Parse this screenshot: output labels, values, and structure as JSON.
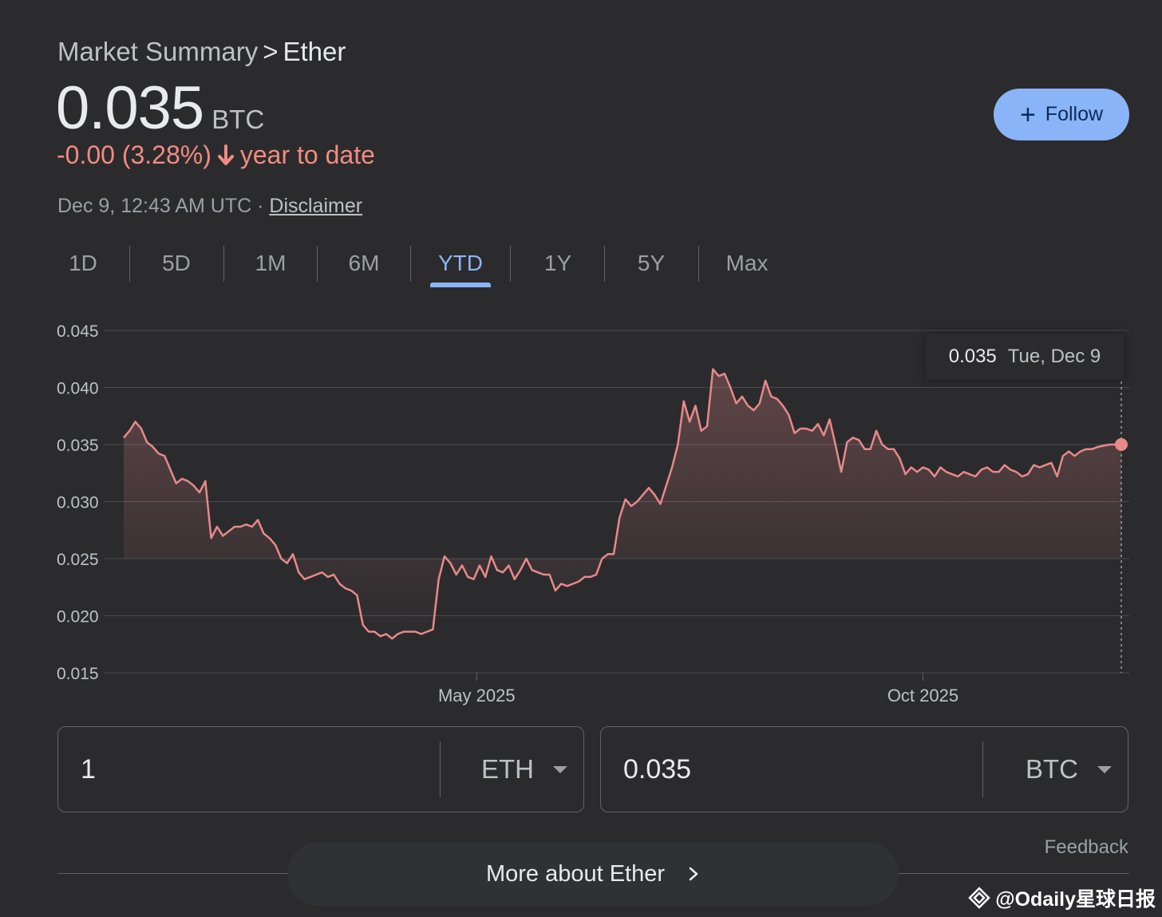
{
  "breadcrumb": {
    "parent": "Market Summary",
    "separator": ">",
    "current": "Ether"
  },
  "price": {
    "value": "0.035",
    "currency": "BTC"
  },
  "change": {
    "text": "-0.00 (3.28%)",
    "period": "year to date",
    "direction": "down"
  },
  "meta": {
    "timestamp": "Dec 9, 12:43 AM UTC",
    "separator": "·",
    "disclaimer": "Disclaimer"
  },
  "follow": {
    "label": "Follow"
  },
  "tabs": [
    {
      "label": "1D",
      "active": false
    },
    {
      "label": "5D",
      "active": false
    },
    {
      "label": "1M",
      "active": false
    },
    {
      "label": "6M",
      "active": false
    },
    {
      "label": "YTD",
      "active": true
    },
    {
      "label": "1Y",
      "active": false
    },
    {
      "label": "5Y",
      "active": false
    },
    {
      "label": "Max",
      "active": false
    }
  ],
  "tooltip": {
    "value": "0.035",
    "date": "Tue, Dec 9"
  },
  "chart_data": {
    "type": "line",
    "yticks": [
      "0.045",
      "0.040",
      "0.035",
      "0.030",
      "0.025",
      "0.020",
      "0.015"
    ],
    "ylim": [
      0.015,
      0.045
    ],
    "xticks": [
      {
        "label": "May 2025",
        "t": 121
      },
      {
        "label": "Oct 2025",
        "t": 274
      }
    ],
    "xlim": [
      0,
      342
    ],
    "grid": true,
    "line_color": "#e8898a",
    "series": [
      {
        "x": [
          0,
          2,
          4,
          6,
          8,
          10,
          12,
          14,
          16,
          18,
          20,
          22,
          24,
          26,
          28,
          30,
          32,
          34,
          36,
          38,
          40,
          42,
          44,
          46,
          48,
          50,
          52,
          54,
          56,
          58,
          60,
          62,
          64,
          66,
          68,
          70,
          72,
          74,
          76,
          78,
          80,
          82,
          84,
          86,
          88,
          90,
          92,
          94,
          96,
          98,
          100,
          102,
          104,
          106,
          108,
          110,
          112,
          114,
          116,
          118,
          120,
          122,
          124,
          126,
          128,
          130,
          132,
          134,
          136,
          138,
          140,
          142,
          144,
          146,
          148,
          150,
          152,
          154,
          156,
          158,
          160,
          162,
          164,
          166,
          168,
          170,
          172,
          174,
          176,
          178,
          180,
          182,
          184,
          186,
          188,
          190,
          192,
          194,
          196,
          198,
          200,
          202,
          204,
          206,
          208,
          210,
          212,
          214,
          216,
          218,
          220,
          222,
          224,
          226,
          228,
          230,
          232,
          234,
          236,
          238,
          240,
          242,
          244,
          246,
          248,
          250,
          252,
          254,
          256,
          258,
          260,
          262,
          264,
          266,
          268,
          270,
          272,
          274,
          276,
          278,
          280,
          282,
          284,
          286,
          288,
          290,
          292,
          294,
          296,
          298,
          300,
          302,
          304,
          306,
          308,
          310,
          312,
          314,
          316,
          318,
          320,
          322,
          324,
          326,
          328,
          330,
          332,
          334,
          336,
          338,
          340,
          342
        ],
        "y": [
          0.0356,
          0.0362,
          0.037,
          0.0364,
          0.0352,
          0.0348,
          0.0342,
          0.034,
          0.0328,
          0.0316,
          0.032,
          0.0318,
          0.0314,
          0.0308,
          0.0318,
          0.0268,
          0.0278,
          0.027,
          0.0274,
          0.0278,
          0.0278,
          0.028,
          0.0278,
          0.0284,
          0.0272,
          0.0268,
          0.0262,
          0.025,
          0.0246,
          0.0254,
          0.0238,
          0.0232,
          0.0234,
          0.0236,
          0.0238,
          0.0234,
          0.0236,
          0.0228,
          0.0224,
          0.0222,
          0.0218,
          0.0192,
          0.0186,
          0.0186,
          0.0182,
          0.0184,
          0.018,
          0.0184,
          0.0186,
          0.0186,
          0.0186,
          0.0184,
          0.0186,
          0.0188,
          0.0232,
          0.0252,
          0.0246,
          0.0236,
          0.0244,
          0.0234,
          0.0232,
          0.0244,
          0.0234,
          0.0252,
          0.024,
          0.0238,
          0.0244,
          0.0232,
          0.024,
          0.025,
          0.024,
          0.0238,
          0.0236,
          0.0236,
          0.0222,
          0.0228,
          0.0226,
          0.0228,
          0.023,
          0.0234,
          0.0234,
          0.0236,
          0.025,
          0.0254,
          0.0254,
          0.0286,
          0.0302,
          0.0296,
          0.03,
          0.0306,
          0.0312,
          0.0306,
          0.0298,
          0.0314,
          0.033,
          0.035,
          0.0388,
          0.037,
          0.0384,
          0.0362,
          0.0366,
          0.0416,
          0.041,
          0.0412,
          0.04,
          0.0386,
          0.0392,
          0.0384,
          0.038,
          0.0386,
          0.0406,
          0.0392,
          0.039,
          0.0384,
          0.0376,
          0.036,
          0.0364,
          0.0364,
          0.0362,
          0.0368,
          0.0358,
          0.0372,
          0.035,
          0.0326,
          0.0352,
          0.0356,
          0.0354,
          0.0346,
          0.0346,
          0.0362,
          0.035,
          0.0346,
          0.0346,
          0.0338,
          0.0324,
          0.033,
          0.0326,
          0.033,
          0.0328,
          0.0322,
          0.033,
          0.0326,
          0.0324,
          0.0322,
          0.0326,
          0.0324,
          0.0322,
          0.0328,
          0.033,
          0.0326,
          0.0326,
          0.0332,
          0.0328,
          0.0326,
          0.0322,
          0.0324,
          0.0332,
          0.033,
          0.0332,
          0.0334,
          0.0322,
          0.034,
          0.0344,
          0.034,
          0.0344,
          0.0346,
          0.0346,
          0.0348,
          0.0349,
          0.035,
          0.035,
          0.035
        ]
      }
    ]
  },
  "converter": [
    {
      "amount": "1",
      "unit": "ETH"
    },
    {
      "amount": "0.035",
      "unit": "BTC"
    }
  ],
  "feedback": "Feedback",
  "more": {
    "label": "More about Ether"
  },
  "watermark": {
    "text": "@Odaily星球日报"
  }
}
